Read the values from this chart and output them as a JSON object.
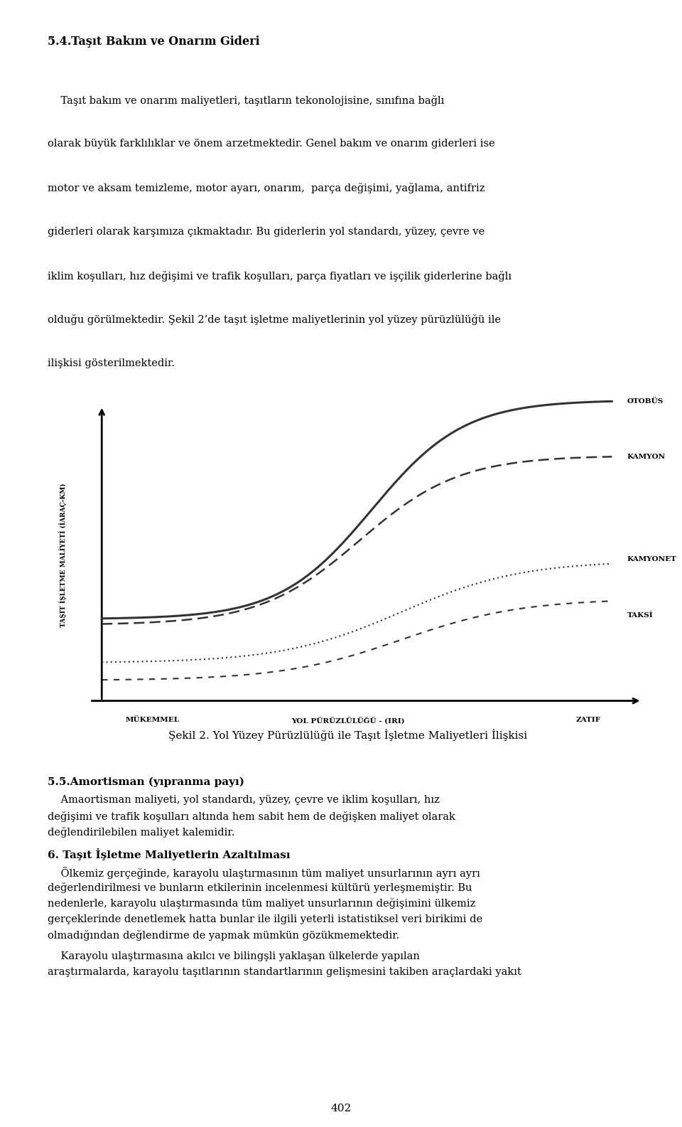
{
  "title_section": "5.4.Taşıt Bakım ve Onarım Gideri",
  "para1_lines": [
    "    Taşıt bakım ve onarım maliyetleri, taşıtların tekonolojisine, sınıfına bağlı",
    "olarak büyük farklılıklar ve önem arzetmektedir. Genel bakım ve onarım giderleri ise",
    "motor ve aksam temizleme, motor ayarı, onarım,  parça değişimi, yağlama, antifriz",
    "giderleri olarak karşımıza çıkmaktadır. Bu giderlerin yol standardı, yüzey, çevre ve",
    "iklim koşulları, hız değişimi ve trafik koşulları, parça fiyatları ve işçilik giderlerine bağlı",
    "olduğu görülmektedir. Şekil 2’de taşıt işletme maliyetlerinin yol yüzey pürüzlülüğü ile",
    "ilişkisi gösterilmektedir."
  ],
  "figure_caption": "Şekil 2. Yol Yüzey Pürüzlülüğü ile Taşıt İşletme Maliyetleri İlişkisi",
  "section55": "5.5.Amortisman (yıpranma payı)",
  "para2_lines": [
    "    Amaortisman maliyeti, yol standardı, yüzey, çevre ve iklim koşulları, hız",
    "değişimi ve trafik koşulları altında hem sabit hem de değişken maliyet olarak",
    "değlendirilebilen maliyet kalemidir."
  ],
  "section6": "6. Taşıt İşletme Maliyetlerin Azaltılması",
  "para3_lines": [
    "    Ölkemiz gerçeğinde, karayolu ulaştırmasının tüm maliyet unsurlarının ayrı ayrı",
    "değerlendirilmesi ve bunların etkilerinin incelenmesi kültürü yerleşmemiştir. Bu",
    "nedenlerle, karayolu ulaştırmasında tüm maliyet unsurlarının değişimini ülkemiz",
    "gerçeklerinde denetlemek hatta bunlar ile ilgili yeterli istatistiksel veri birikimi de",
    "olmadığından değlendirme de yapmak mümkün gözükmemektedir."
  ],
  "para4_lines": [
    "    Karayolu ulaştırmasına akılcı ve bilingşli yaklaşan ülkelerde yapılan",
    "araştırmalarda, karayolu taşıtlarının standartlarının gelişmesini takiben araçlardaki yakıt"
  ],
  "ylabel": "TAŞIT İŞLETME MALİYETİ (İARAÇ-KM)",
  "xlabel_left": "MÜKEMMEL",
  "xlabel_mid": "YOL PÜRÜZLÜLÜĞÜ - (IRI)",
  "xlabel_right": "ZATIF",
  "labels": [
    "OTOBÜS",
    "KAMYON",
    "KAMYONET",
    "TAKSİ"
  ],
  "line_color": "#333333",
  "bg_color": "#ffffff",
  "page_number": "402"
}
